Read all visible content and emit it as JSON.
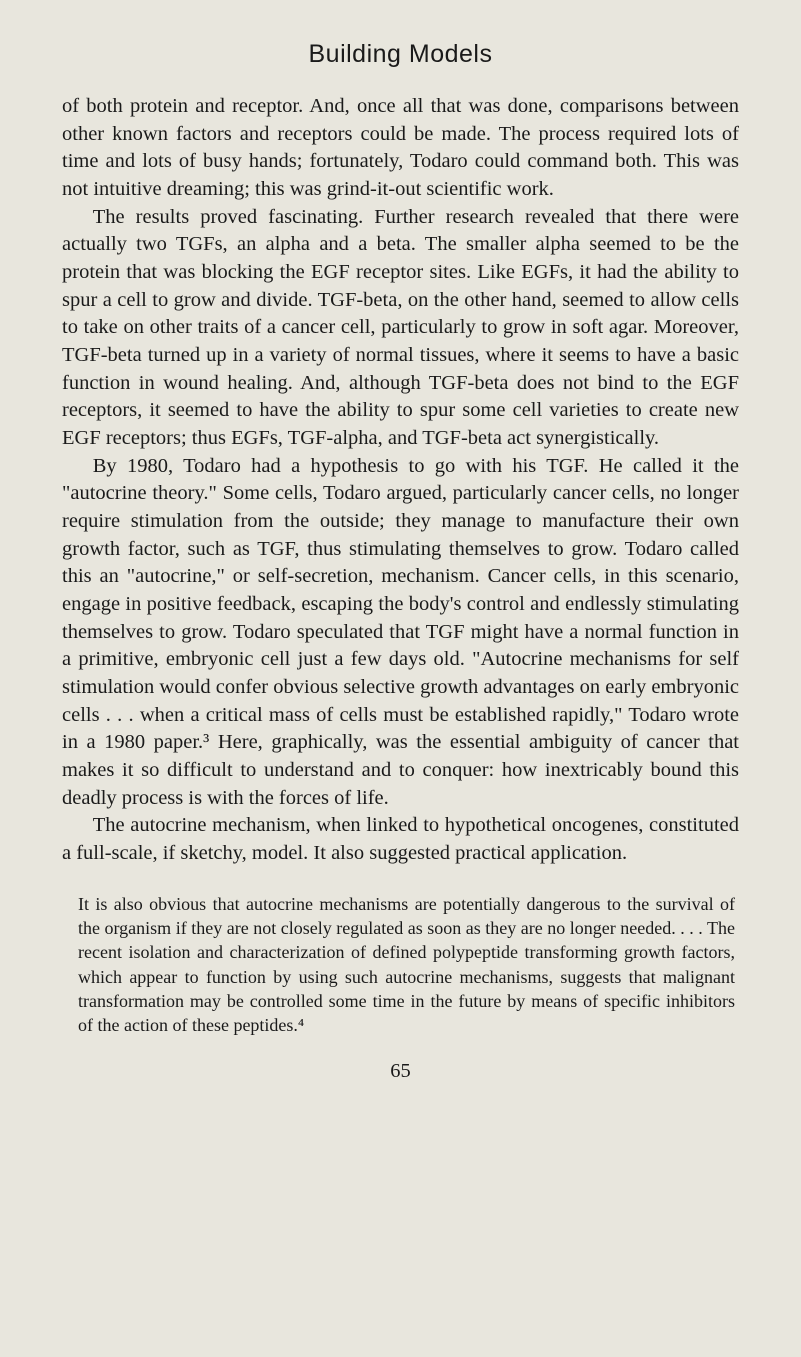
{
  "page": {
    "chapter_title": "Building Models",
    "paragraphs": [
      "of both protein and receptor. And, once all that was done, comparisons between other known factors and receptors could be made. The process required lots of time and lots of busy hands; fortunately, Todaro could command both. This was not intuitive dreaming; this was grind-it-out scientific work.",
      "The results proved fascinating. Further research revealed that there were actually two TGFs, an alpha and a beta. The smaller alpha seemed to be the protein that was blocking the EGF receptor sites. Like EGFs, it had the ability to spur a cell to grow and divide. TGF-beta, on the other hand, seemed to allow cells to take on other traits of a cancer cell, particularly to grow in soft agar. Moreover, TGF-beta turned up in a variety of normal tissues, where it seems to have a basic function in wound healing. And, although TGF-beta does not bind to the EGF receptors, it seemed to have the ability to spur some cell varieties to create new EGF receptors; thus EGFs, TGF-alpha, and TGF-beta act synergistically.",
      "By 1980, Todaro had a hypothesis to go with his TGF. He called it the \"autocrine theory.\" Some cells, Todaro argued, particularly cancer cells, no longer require stimulation from the outside; they manage to manufacture their own growth factor, such as TGF, thus stimulating themselves to grow. Todaro called this an \"autocrine,\" or self-secretion, mechanism. Cancer cells, in this scenario, engage in positive feedback, escaping the body's control and endlessly stimulating themselves to grow. Todaro speculated that TGF might have a normal function in a primitive, embryonic cell just a few days old. \"Autocrine mechanisms for self stimulation would confer obvious selective growth advantages on early embryonic cells . . . when a critical mass of cells must be established rapidly,\" Todaro wrote in a 1980 paper.³ Here, graphically, was the essential ambiguity of cancer that makes it so difficult to understand and to conquer: how inextricably bound this deadly process is with the forces of life.",
      "The autocrine mechanism, when linked to hypothetical oncogenes, constituted a full-scale, if sketchy, model. It also suggested practical application."
    ],
    "block_quote": "It is also obvious that autocrine mechanisms are potentially dangerous to the survival of the organism if they are not closely regulated as soon as they are no longer needed. . . . The recent isolation and characterization of defined polypeptide transforming growth factors, which appear to function by using such autocrine mechanisms, suggests that malignant transformation may be controlled some time in the future by means of specific inhibitors of the action of these peptides.⁴",
    "page_number": "65"
  },
  "style": {
    "background_color": "#e8e6dd",
    "text_color": "#1a1a1a",
    "body_font_size": 20.5,
    "quote_font_size": 18,
    "title_font_size": 25,
    "line_height": 1.35
  }
}
